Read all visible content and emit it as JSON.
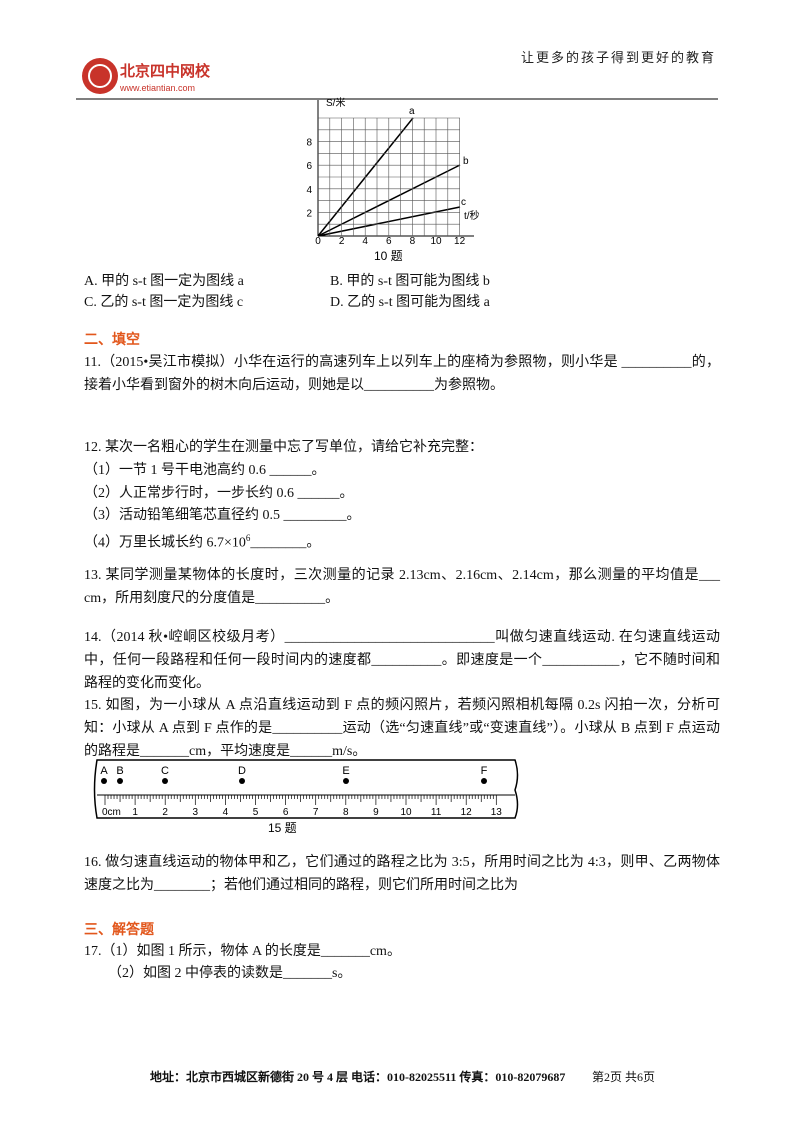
{
  "header": {
    "logo_name": "北京四中网校",
    "logo_url": "www.etiantian.com",
    "slogan": "让更多的孩子得到更好的教育"
  },
  "figure10": {
    "y_label": "S/米",
    "x_label": "t/秒",
    "y_ticks": [
      "2",
      "4",
      "6",
      "8"
    ],
    "x_ticks": [
      "0",
      "2",
      "4",
      "6",
      "8",
      "10",
      "12"
    ],
    "line_labels": [
      "a",
      "b",
      "c"
    ],
    "caption": "10 题"
  },
  "q10_options": [
    "A. 甲的 s-t 图一定为图线 a",
    "B. 甲的 s-t 图可能为图线 b",
    "C. 乙的 s-t 图一定为图线 c",
    "D. 乙的 s-t 图可能为图线 a"
  ],
  "section2": "二、填空",
  "q11": "11.（2015•吴江市模拟）小华在运行的高速列车上以列车上的座椅为参照物，则小华是 __________的，接着小华看到窗外的树木向后运动，则她是以__________为参照物。",
  "q12": {
    "stem": "12.  某次一名粗心的学生在测量中忘了写单位，请给它补充完整：",
    "items": [
      "（1）一节 1 号干电池高约 0.6 ______。",
      "（2）人正常步行时，一步长约 0.6 ______。",
      "（3）活动铅笔细笔芯直径约 0.5 _________。"
    ],
    "item4": {
      "before": "（4）万里长城长约 6.7×10",
      "sup": "6",
      "after": "________。"
    }
  },
  "q13": "13.  某同学测量某物体的长度时，三次测量的记录 2.13cm、2.16cm、2.14cm，那么测量的平均值是___ cm，所用刻度尺的分度值是__________。",
  "q14": "14.（2014 秋•崆峒区校级月考）______________________________叫做匀速直线运动. 在匀速直线运动中，任何一段路程和任何一段时间内的速度都__________。即速度是一个___________，它不随时间和路程的变化而变化。",
  "q15": "15.  如图，为一小球从 A 点沿直线运动到 F 点的频闪照片，若频闪照相机每隔 0.2s 闪拍一次，分析可知：小球从 A 点到 F 点作的是__________运动（选“匀速直线”或“变速直线”）。小球从 B 点到 F 点运动的路程是_______cm，平均速度是______m/s。",
  "figure15": {
    "points": [
      "A",
      "B",
      "C",
      "D",
      "E",
      "F"
    ],
    "scale": [
      "0cm",
      "1",
      "2",
      "3",
      "4",
      "5",
      "6",
      "7",
      "8",
      "9",
      "10",
      "11",
      "12",
      "13"
    ],
    "caption": "15 题"
  },
  "q16": "16.  做匀速直线运动的物体甲和乙，它们通过的路程之比为 3:5，所用时间之比为 4:3，则甲、乙两物体速度之比为________；若他们通过相同的路程，则它们所用时间之比为",
  "section3": "三、解答题",
  "q17": [
    "17.（1）如图 1 所示，物体 A 的长度是_______cm。",
    "（2）如图 2 中停表的读数是_______s。"
  ],
  "footer": {
    "address": "地址：北京市西城区新德街 20 号 4 层  电话：010-82025511  传真：010-82079687",
    "page": "第2页  共6页"
  }
}
